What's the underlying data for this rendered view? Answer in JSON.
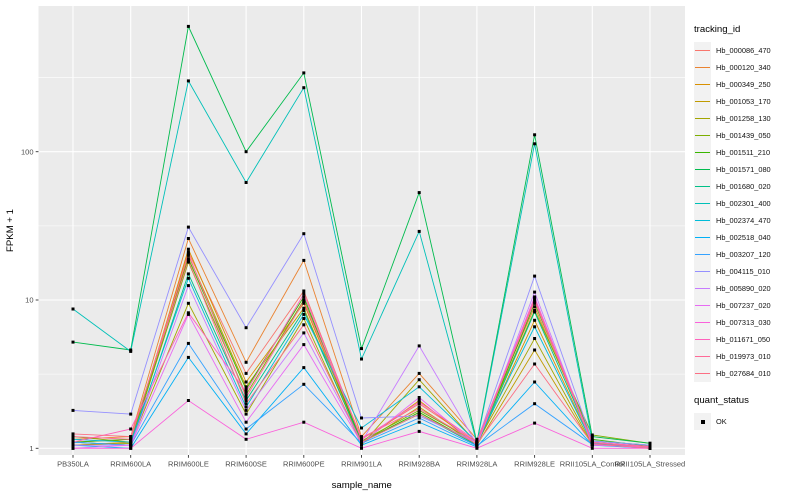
{
  "chart_data": {
    "type": "line",
    "title": "",
    "xlabel": "sample_name",
    "ylabel": "FPKM + 1",
    "y_scale": "log10",
    "y_ticks": [
      1,
      10,
      100
    ],
    "y_minor_ticks": [
      3.162,
      31.62,
      316.2
    ],
    "ylim": [
      0.9,
      960
    ],
    "grid": "on",
    "panel_bg": "#EBEBEB",
    "grid_color": "#FFFFFF",
    "marker": "square",
    "marker_color": "#000000",
    "categories": [
      "PB350LA",
      "RRIM600LA",
      "RRIM600LE",
      "RRIM600SE",
      "RRIM600PE",
      "RRIM901LA",
      "RRIM928BA",
      "RRIM928LA",
      "RRIM928LE",
      "RRII105LA_Control",
      "RRII105LA_Stressed"
    ],
    "series": [
      {
        "name": "Hb_000086_470",
        "color": "#F8766D",
        "values": [
          1.1,
          1.15,
          21.0,
          3.2,
          11.5,
          1.15,
          2.0,
          1.1,
          10.0,
          1.1,
          1.0
        ]
      },
      {
        "name": "Hb_000120_340",
        "color": "#EA8331",
        "values": [
          1.15,
          1.2,
          26.0,
          3.8,
          18.5,
          1.2,
          3.2,
          1.15,
          9.0,
          1.12,
          1.05
        ]
      },
      {
        "name": "Hb_000349_250",
        "color": "#D89000",
        "values": [
          1.05,
          1.1,
          22.0,
          2.8,
          9.5,
          1.1,
          2.1,
          1.05,
          7.3,
          1.08,
          1.0
        ]
      },
      {
        "name": "Hb_001053_170",
        "color": "#C09B00",
        "values": [
          1.1,
          1.05,
          20.0,
          2.6,
          8.8,
          1.08,
          1.9,
          1.05,
          4.6,
          1.05,
          1.02
        ]
      },
      {
        "name": "Hb_001258_130",
        "color": "#A3A500",
        "values": [
          1.05,
          1.08,
          9.5,
          1.7,
          7.5,
          1.05,
          2.9,
          1.08,
          5.5,
          1.06,
          1.0
        ]
      },
      {
        "name": "Hb_001439_050",
        "color": "#7CAE00",
        "values": [
          1.2,
          1.1,
          18.0,
          2.3,
          10.0,
          1.12,
          1.8,
          1.1,
          8.5,
          1.23,
          1.08
        ]
      },
      {
        "name": "Hb_001511_210",
        "color": "#39B600",
        "values": [
          1.1,
          1.15,
          19.0,
          2.5,
          10.5,
          1.1,
          1.75,
          1.06,
          9.5,
          1.15,
          1.03
        ]
      },
      {
        "name": "Hb_001571_080",
        "color": "#00BB4E",
        "values": [
          5.2,
          4.6,
          700,
          100,
          340,
          4.7,
          53.0,
          1.1,
          130,
          1.2,
          1.08
        ]
      },
      {
        "name": "Hb_001680_020",
        "color": "#00C087",
        "values": [
          1.1,
          1.05,
          15.0,
          2.1,
          8.5,
          1.1,
          1.7,
          1.05,
          8.3,
          1.1,
          1.02
        ]
      },
      {
        "name": "Hb_002301_400",
        "color": "#00C0B8",
        "values": [
          8.7,
          4.5,
          300,
          62.0,
          270,
          4.0,
          29.0,
          1.08,
          113,
          1.12,
          1.05
        ]
      },
      {
        "name": "Hb_002374_470",
        "color": "#00BCD8",
        "values": [
          1.15,
          1.1,
          14.0,
          1.9,
          8.0,
          1.37,
          2.6,
          1.1,
          6.6,
          1.08,
          1.0
        ]
      },
      {
        "name": "Hb_002518_040",
        "color": "#00B0F6",
        "values": [
          1.05,
          1.0,
          4.1,
          1.25,
          3.5,
          1.05,
          1.5,
          1.02,
          2.8,
          1.05,
          1.0
        ]
      },
      {
        "name": "Hb_003207_120",
        "color": "#35A2FF",
        "values": [
          1.1,
          1.05,
          5.1,
          1.35,
          2.7,
          1.08,
          1.6,
          1.04,
          2.0,
          1.06,
          1.02
        ]
      },
      {
        "name": "Hb_004115_010",
        "color": "#9590FF",
        "values": [
          1.8,
          1.7,
          31.0,
          6.5,
          28.0,
          1.6,
          1.65,
          1.1,
          14.5,
          1.12,
          1.05
        ]
      },
      {
        "name": "Hb_005890_020",
        "color": "#C77CFF",
        "values": [
          1.05,
          1.05,
          12.5,
          1.8,
          6.0,
          1.1,
          4.9,
          1.06,
          11.3,
          1.06,
          1.0
        ]
      },
      {
        "name": "Hb_007237_020",
        "color": "#E76BF3",
        "values": [
          1.0,
          1.05,
          8.0,
          1.5,
          5.0,
          1.08,
          2.2,
          1.05,
          10.5,
          1.05,
          1.02
        ]
      },
      {
        "name": "Hb_007313_030",
        "color": "#FA62DB",
        "values": [
          1.0,
          1.0,
          2.1,
          1.15,
          1.5,
          1.0,
          1.3,
          1.0,
          1.48,
          1.0,
          1.0
        ]
      },
      {
        "name": "Hb_011671_050",
        "color": "#FF62BC",
        "values": [
          1.1,
          1.35,
          8.2,
          2.4,
          11.0,
          1.15,
          2.05,
          1.12,
          10.3,
          1.1,
          1.03
        ]
      },
      {
        "name": "Hb_019973_010",
        "color": "#FF6A98",
        "values": [
          1.2,
          1.15,
          20.5,
          2.2,
          9.8,
          1.18,
          1.85,
          1.1,
          9.8,
          1.09,
          1.02
        ]
      },
      {
        "name": "Hb_027684_010",
        "color": "#FC6F84",
        "values": [
          1.25,
          1.2,
          18.5,
          2.0,
          6.8,
          1.1,
          1.7,
          1.07,
          3.7,
          1.07,
          1.0
        ]
      }
    ],
    "legend": {
      "position": "right",
      "color_title": "tracking_id",
      "shape_title": "quant_status",
      "shape_items": [
        {
          "label": "OK",
          "marker": "square",
          "color": "#000000"
        }
      ]
    }
  }
}
